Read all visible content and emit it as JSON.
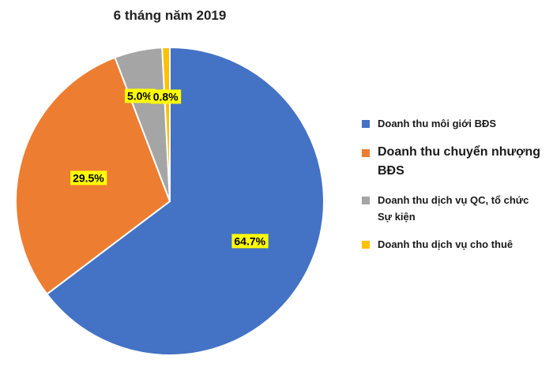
{
  "chart_data": {
    "type": "pie",
    "title": "6 tháng năm 2019",
    "legend_position": "right",
    "start_angle_deg": 0,
    "direction": "clockwise",
    "label_color": "#ffff00",
    "slices": [
      {
        "label": "Doanh thu môi giới BĐS",
        "value": 64.7,
        "value_label": "64.7%",
        "color": "#4472c4"
      },
      {
        "label": "Doanh thu chuyển nhượng BĐS",
        "value": 29.5,
        "value_label": "29.5%",
        "color": "#ed7d31"
      },
      {
        "label": "Doanh thu dịch vụ QC, tổ chức Sự kiện",
        "value": 5.0,
        "value_label": "5.0%",
        "color": "#a5a5a5"
      },
      {
        "label": "Doanh thu dịch vụ cho thuê",
        "value": 0.8,
        "value_label": "0.8%",
        "color": "#ffc000"
      }
    ]
  }
}
